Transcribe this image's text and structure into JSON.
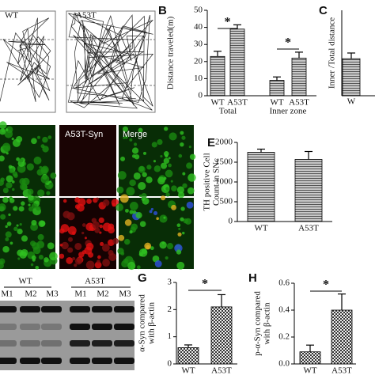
{
  "chart_data": [
    {
      "type": "bar",
      "panel": "B",
      "ylabel": [
        "Distance traveled(m)"
      ],
      "categories": [
        "WT",
        "A53T",
        "WT",
        "A53T"
      ],
      "groups": [
        "Total",
        "Inner zone"
      ],
      "values": [
        23,
        39,
        9,
        22
      ],
      "errors": [
        3,
        2.5,
        2,
        3.5
      ],
      "hatch": "horizontal",
      "significance": [
        "*",
        "*"
      ],
      "ylim": [
        0,
        50
      ],
      "yticks": [
        0,
        10,
        20,
        30,
        40,
        50
      ]
    },
    {
      "type": "bar",
      "panel": "C",
      "ylabel": [
        "Inner /Total distance"
      ],
      "categories": [
        "W"
      ],
      "values": [
        0.26
      ],
      "errors": [
        0.04
      ],
      "hatch": "horizontal",
      "ylim": [
        0,
        0.6
      ]
    },
    {
      "type": "bar",
      "panel": "E",
      "ylabel": [
        "TH positive Cell",
        "Count in SNc"
      ],
      "categories": [
        "WT",
        "A53T"
      ],
      "values": [
        1750,
        1570
      ],
      "errors": [
        80,
        200
      ],
      "hatch": "horizontal",
      "ylim": [
        0,
        2000
      ],
      "yticks": [
        0,
        500,
        1000,
        1500,
        2000
      ]
    },
    {
      "type": "bar",
      "panel": "G",
      "ylabel": [
        "α-Syn compared",
        "with β-actin"
      ],
      "categories": [
        "WT",
        "A53T"
      ],
      "values": [
        0.6,
        2.1
      ],
      "errors": [
        0.1,
        0.45
      ],
      "hatch": "checker",
      "significance": [
        "*"
      ],
      "ylim": [
        0,
        3
      ],
      "yticks": [
        0,
        1,
        2,
        3
      ]
    },
    {
      "type": "bar",
      "panel": "H",
      "ylabel": [
        "p-α-Syn compared",
        "with β-actin"
      ],
      "categories": [
        "WT",
        "A53T"
      ],
      "values": [
        0.09,
        0.4
      ],
      "errors": [
        0.05,
        0.12
      ],
      "hatch": "checker",
      "significance": [
        "*"
      ],
      "ylim": [
        0,
        0.6
      ],
      "yticks": [
        {
          "value": 0,
          "label": "0.0"
        },
        0.2,
        0.4,
        0.6
      ]
    }
  ],
  "panel_a": {
    "labels": [
      "WT",
      "A53T"
    ]
  },
  "panel_d": {
    "labels": [
      "A53T-Syn",
      "Merge"
    ]
  },
  "panel_f": {
    "groups": [
      "WT",
      "A53T"
    ],
    "lanes": [
      "M1",
      "M2",
      "M3",
      "M1",
      "M2",
      "M3"
    ]
  }
}
